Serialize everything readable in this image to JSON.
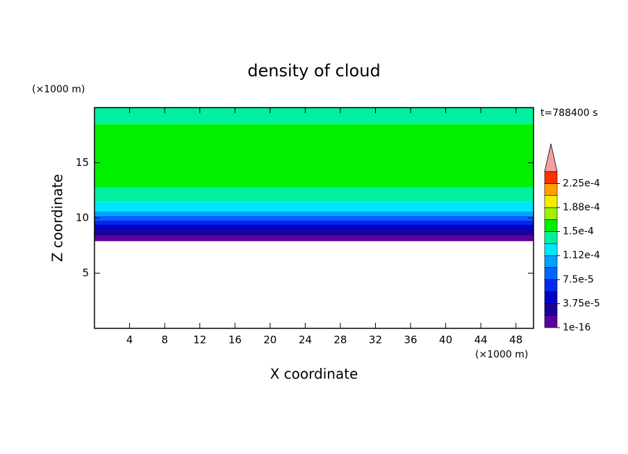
{
  "chart_data": {
    "type": "contour",
    "title": "density of cloud",
    "xlabel": "X coordinate",
    "ylabel": "Z coordinate",
    "x_unit": "(×1000 m)",
    "y_unit": "(×1000 m)",
    "annotation": "t=788400 s",
    "xlim": [
      0,
      50
    ],
    "xticks": [
      4,
      8,
      12,
      16,
      20,
      24,
      28,
      32,
      36,
      40,
      44,
      48
    ],
    "ylim": [
      0,
      20
    ],
    "yticks": [
      5,
      10,
      15
    ],
    "z_edges": [
      7.9,
      8.4,
      8.9,
      9.4,
      9.8,
      10.2,
      10.6,
      11.5,
      12.8,
      18.5,
      20
    ],
    "values": [
      1e-05,
      2.5e-05,
      4.5e-05,
      6e-05,
      8e-05,
      0.0001,
      0.000115,
      0.00014,
      0.000155,
      0.00014
    ],
    "level_step": 1.875e-05,
    "colors": [
      "#5a00a0",
      "#1e0096",
      "#0000c8",
      "#0028f0",
      "#0064ff",
      "#00a0ff",
      "#00e6ff",
      "#00f0a0",
      "#00f000",
      "#a0f000",
      "#f0f000",
      "#ffa000",
      "#ff3000"
    ],
    "over_color": "#f4a0a0",
    "colorbar_ticks": [
      {
        "value": 1e-16,
        "label": "1e-16"
      },
      {
        "value": 3.75e-05,
        "label": "3.75e-5"
      },
      {
        "value": 7.5e-05,
        "label": "7.5e-5"
      },
      {
        "value": 0.0001125,
        "label": "1.12e-4"
      },
      {
        "value": 0.00015,
        "label": "1.5e-4"
      },
      {
        "value": 0.0001875,
        "label": "1.88e-4"
      },
      {
        "value": 0.000225,
        "label": "2.25e-4"
      }
    ]
  }
}
